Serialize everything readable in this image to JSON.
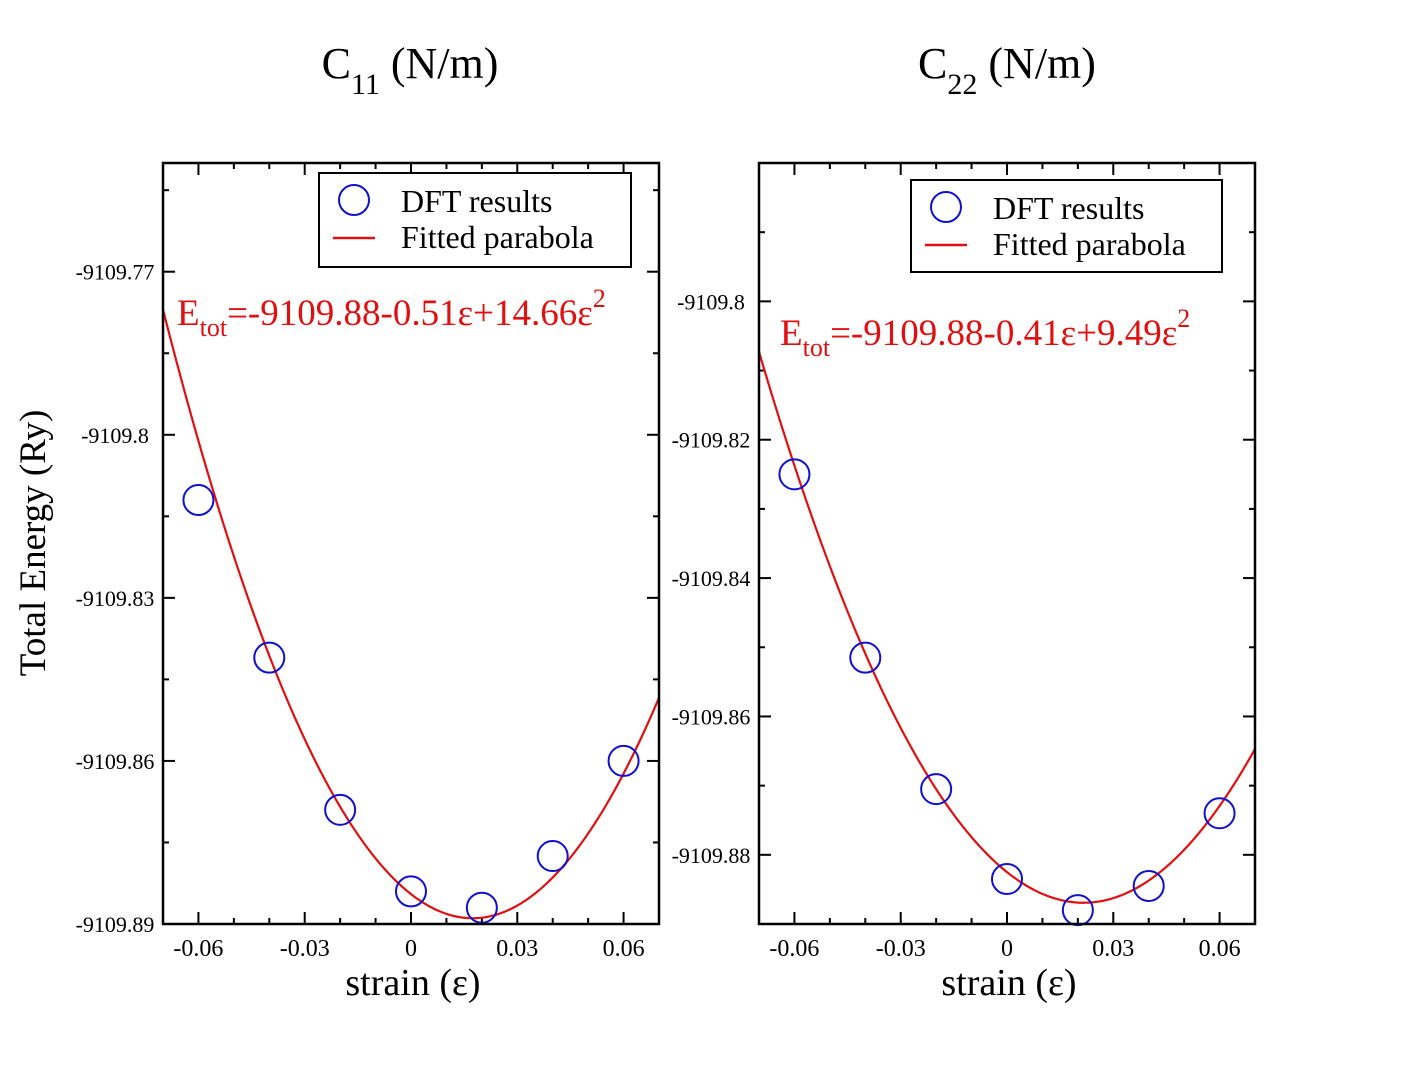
{
  "colors": {
    "axis": "#000000",
    "marker": "#1010d0",
    "fit": "#e01010",
    "equation": "#e01010"
  },
  "ylabel": "Total Energy (Ry)",
  "chart_data": [
    {
      "type": "scatter",
      "title_main": "C",
      "title_sub": "11",
      "title_rest": " (N/m)",
      "xlabel": "strain (ε)",
      "ylabel": "Total Energy (Ry)",
      "xlim": [
        -0.07,
        0.07
      ],
      "ylim": [
        -9109.89,
        -9109.75
      ],
      "xticks": [
        -0.06,
        -0.03,
        0,
        0.03,
        0.06
      ],
      "xtick_labels": [
        "-0.06",
        "-0.03",
        "0",
        "0.03",
        "0.06"
      ],
      "yticks": [
        -9109.77,
        -9109.8,
        -9109.83,
        -9109.86,
        -9109.89
      ],
      "ytick_labels": [
        "-9109.77",
        "-9109.8",
        "-9109.83",
        "-9109.86",
        "-9109.89"
      ],
      "legend": {
        "placement": "top-right",
        "markers_label": "DFT results",
        "line_label": "Fitted parabola"
      },
      "equation": {
        "prefix": "E",
        "sub": "tot",
        "body": "=-9109.88-0.51ε+14.66ε",
        "sup": "2"
      },
      "fit": {
        "a0": -9109.8845,
        "a1": -0.51,
        "a2": 14.66
      },
      "series": [
        {
          "name": "DFT results",
          "x": [
            -0.06,
            -0.04,
            -0.02,
            0,
            0.02,
            0.04,
            0.06
          ],
          "y": [
            -9109.812,
            -9109.841,
            -9109.869,
            -9109.884,
            -9109.887,
            -9109.8775,
            -9109.86
          ]
        }
      ]
    },
    {
      "type": "scatter",
      "title_main": "C",
      "title_sub": "22",
      "title_rest": " (N/m)",
      "xlabel": "strain (ε)",
      "ylabel": "",
      "xlim": [
        -0.07,
        0.07
      ],
      "ylim": [
        -9109.89,
        -9109.78
      ],
      "xticks": [
        -0.06,
        -0.03,
        0,
        0.03,
        0.06
      ],
      "xtick_labels": [
        "-0.06",
        "-0.03",
        "0",
        "0.03",
        "0.06"
      ],
      "yticks": [
        -9109.8,
        -9109.82,
        -9109.84,
        -9109.86,
        -9109.88
      ],
      "ytick_labels": [
        "-9109.8",
        "-9109.82",
        "-9109.84",
        "-9109.86",
        "-9109.88"
      ],
      "legend": {
        "placement": "top-right",
        "markers_label": "DFT results",
        "line_label": "Fitted parabola"
      },
      "equation": {
        "prefix": "E",
        "sub": "tot",
        "body": "=-9109.88-0.41ε+9.49ε",
        "sup": "2"
      },
      "fit": {
        "a0": -9109.8825,
        "a1": -0.41,
        "a2": 9.49
      },
      "series": [
        {
          "name": "DFT results",
          "x": [
            -0.06,
            -0.04,
            -0.02,
            0,
            0.02,
            0.04,
            0.06
          ],
          "y": [
            -9109.825,
            -9109.8515,
            -9109.8705,
            -9109.8835,
            -9109.888,
            -9109.8845,
            -9109.874
          ]
        }
      ]
    }
  ]
}
